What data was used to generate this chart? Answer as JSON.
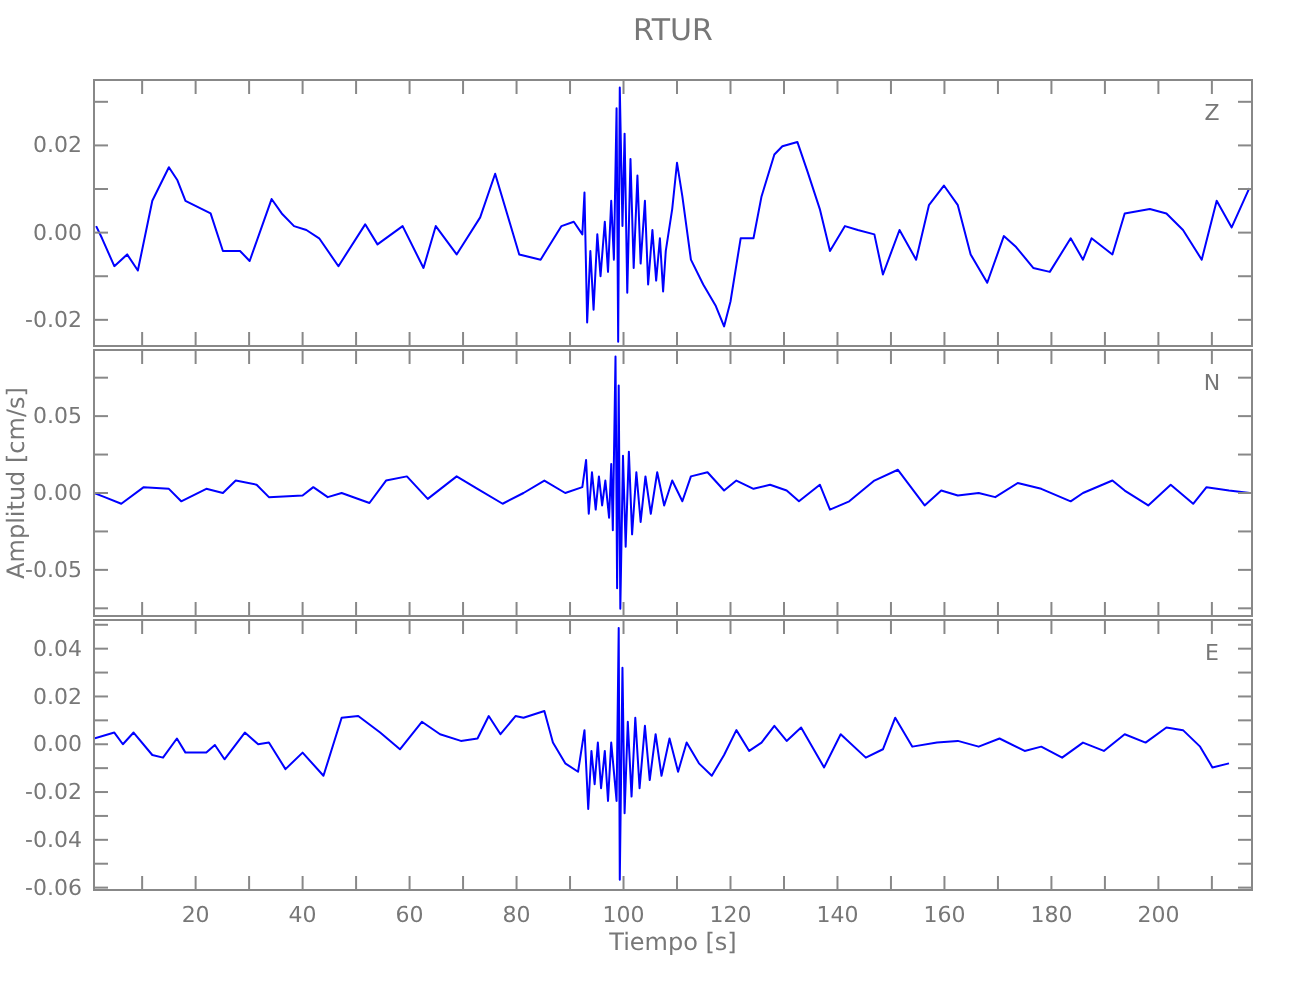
{
  "chart_data": [
    {
      "type": "line",
      "title": "RTUR",
      "annotations": [
        "Z"
      ],
      "xlim": [
        1,
        217.5
      ],
      "ylim": [
        -0.026,
        0.035
      ],
      "tick_labels": "y",
      "xticks": [
        {
          "value": 10,
          "label": null
        },
        {
          "value": 20,
          "label": null
        },
        {
          "value": 30,
          "label": null
        },
        {
          "value": 40,
          "label": null
        },
        {
          "value": 50,
          "label": null
        },
        {
          "value": 60,
          "label": null
        },
        {
          "value": 70,
          "label": null
        },
        {
          "value": 80,
          "label": null
        },
        {
          "value": 90,
          "label": null
        },
        {
          "value": 100,
          "label": null
        },
        {
          "value": 110,
          "label": null
        },
        {
          "value": 120,
          "label": null
        },
        {
          "value": 130,
          "label": null
        },
        {
          "value": 140,
          "label": null
        },
        {
          "value": 150,
          "label": null
        },
        {
          "value": 160,
          "label": null
        },
        {
          "value": 170,
          "label": null
        },
        {
          "value": 180,
          "label": null
        },
        {
          "value": 190,
          "label": null
        },
        {
          "value": 200,
          "label": null
        },
        {
          "value": 210,
          "label": null
        }
      ],
      "yticks": [
        {
          "value": -0.02,
          "label": "-0.02"
        },
        {
          "value": -0.01,
          "label": null
        },
        {
          "value": 0,
          "label": "0.00"
        },
        {
          "value": 0.01,
          "label": null
        },
        {
          "value": 0.02,
          "label": "0.02"
        },
        {
          "value": 0.03,
          "label": null
        }
      ],
      "series": [
        {
          "color": "#0000ff",
          "x": [
            1.4,
            2.5,
            4.8,
            7.2,
            9.2,
            11.9,
            15,
            16.6,
            18.1,
            22.8,
            25.1,
            28.3,
            30.1,
            34.2,
            36.1,
            38.4,
            40.7,
            43.1,
            46.7,
            51.7,
            54,
            58.7,
            62.6,
            64.9,
            68.8,
            73.2,
            76,
            80.5,
            84.5,
            88.4,
            90.7,
            92.3,
            92.7,
            93.2,
            93.8,
            94.4,
            95.1,
            95.7,
            96.5,
            97.1,
            97.7,
            98.2,
            98.7,
            99,
            99.3,
            99.8,
            100.2,
            100.7,
            101.3,
            101.9,
            102.6,
            103.2,
            104,
            104.6,
            105.4,
            106.1,
            106.8,
            107.4,
            107.9,
            109.1,
            110,
            111,
            112.6,
            114.9,
            117.2,
            118.8,
            120,
            121.9,
            124.3,
            125.8,
            128.2,
            129.7,
            132.5,
            134.4,
            136.7,
            138.6,
            141.4,
            143.8,
            146.9,
            148.5,
            151.6,
            154.7,
            157.1,
            159.9,
            162.5,
            164.9,
            168,
            171.1,
            173.4,
            176.6,
            179.7,
            183.6,
            185.9,
            187.5,
            191.4,
            193.7,
            198.4,
            201.5,
            204.6,
            208.1,
            210.9,
            213.7,
            217
          ],
          "values": [
            0.0015,
            -0.0013,
            -0.0077,
            -0.005,
            -0.0087,
            0.0073,
            0.015,
            0.012,
            0.0073,
            0.0044,
            -0.0042,
            -0.0042,
            -0.0065,
            0.0077,
            0.0044,
            0.0015,
            0.0006,
            -0.0013,
            -0.0077,
            0.0019,
            -0.0027,
            0.0015,
            -0.0081,
            0.0015,
            -0.005,
            0.0035,
            0.0135,
            -0.005,
            -0.0062,
            0.0015,
            0.0025,
            -0.0004,
            0.0092,
            -0.0206,
            -0.0042,
            -0.0177,
            -0.0004,
            -0.01,
            0.0025,
            -0.009,
            0.0073,
            -0.0062,
            0.0285,
            -0.025,
            0.0333,
            0.0015,
            0.0227,
            -0.0138,
            0.0169,
            -0.0081,
            0.0131,
            -0.0071,
            0.0073,
            -0.0119,
            0.0006,
            -0.011,
            -0.0013,
            -0.0135,
            -0.0042,
            0.0054,
            0.016,
            0.0083,
            -0.0062,
            -0.0119,
            -0.0167,
            -0.0215,
            -0.0158,
            -0.0013,
            -0.0013,
            0.0083,
            0.0179,
            0.0198,
            0.0208,
            0.014,
            0.0054,
            -0.0042,
            0.0015,
            0.0006,
            -0.0004,
            -0.0096,
            0.0006,
            -0.0062,
            0.0063,
            0.0108,
            0.0063,
            -0.005,
            -0.0115,
            -0.0008,
            -0.0033,
            -0.0081,
            -0.009,
            -0.0013,
            -0.0062,
            -0.0013,
            -0.005,
            0.0044,
            0.0054,
            0.0044,
            0.0006,
            -0.0062,
            0.0073,
            0.0012,
            0.0102
          ]
        }
      ]
    },
    {
      "type": "line",
      "ylabel": "Amplitud  [cm/s]",
      "annotations": [
        "N"
      ],
      "xlim": [
        1,
        217.5
      ],
      "ylim": [
        -0.08,
        0.093
      ],
      "tick_labels": "y",
      "xticks": [
        {
          "value": 10,
          "label": null
        },
        {
          "value": 20,
          "label": null
        },
        {
          "value": 30,
          "label": null
        },
        {
          "value": 40,
          "label": null
        },
        {
          "value": 50,
          "label": null
        },
        {
          "value": 60,
          "label": null
        },
        {
          "value": 70,
          "label": null
        },
        {
          "value": 80,
          "label": null
        },
        {
          "value": 90,
          "label": null
        },
        {
          "value": 100,
          "label": null
        },
        {
          "value": 110,
          "label": null
        },
        {
          "value": 120,
          "label": null
        },
        {
          "value": 130,
          "label": null
        },
        {
          "value": 140,
          "label": null
        },
        {
          "value": 150,
          "label": null
        },
        {
          "value": 160,
          "label": null
        },
        {
          "value": 170,
          "label": null
        },
        {
          "value": 180,
          "label": null
        },
        {
          "value": 190,
          "label": null
        },
        {
          "value": 200,
          "label": null
        },
        {
          "value": 210,
          "label": null
        }
      ],
      "yticks": [
        {
          "value": -0.075,
          "label": null
        },
        {
          "value": -0.05,
          "label": "-0.05"
        },
        {
          "value": -0.025,
          "label": null
        },
        {
          "value": 0,
          "label": "0.00"
        },
        {
          "value": 0.025,
          "label": null
        },
        {
          "value": 0.05,
          "label": "0.05"
        },
        {
          "value": 0.075,
          "label": null
        }
      ],
      "series": [
        {
          "color": "#0000ff",
          "x": [
            1,
            3,
            6.1,
            10.3,
            15,
            17.3,
            22,
            25.1,
            27.5,
            31.4,
            33.7,
            40,
            42,
            44.7,
            47.3,
            52.5,
            55.6,
            59.5,
            63.4,
            68.8,
            72.7,
            77.4,
            81.3,
            85.2,
            89.1,
            92.3,
            93,
            93.5,
            94.1,
            94.8,
            95.4,
            96,
            96.6,
            97.3,
            97.7,
            98,
            98.5,
            98.8,
            99.1,
            99.4,
            99.9,
            100.4,
            101,
            101.6,
            102.4,
            103.2,
            104.1,
            105.1,
            106.3,
            107.6,
            109.1,
            111,
            112.6,
            115.7,
            118.8,
            121.1,
            124.3,
            127.4,
            130.5,
            132.8,
            136.7,
            138.6,
            142.2,
            146.9,
            151.3,
            156.3,
            159.4,
            162.5,
            166.4,
            169.5,
            173.7,
            178.1,
            183.6,
            185.9,
            191.4,
            193.7,
            198.1,
            202.3,
            206.5,
            209,
            213.2,
            217.1
          ],
          "values": [
            0,
            -0.0027,
            -0.007,
            0.0038,
            0.0027,
            -0.0054,
            0.0027,
            0,
            0.0081,
            0.0054,
            -0.0027,
            -0.0016,
            0.0038,
            -0.0027,
            0,
            -0.0065,
            0.0081,
            0.0108,
            -0.0038,
            0.0108,
            0.0027,
            -0.007,
            0,
            0.0081,
            0,
            0.0038,
            0.0215,
            -0.0135,
            0.0135,
            -0.0108,
            0.0108,
            -0.0081,
            0.0081,
            -0.0161,
            0.0188,
            -0.0242,
            0.0888,
            -0.0619,
            0.0699,
            -0.0753,
            0.0242,
            -0.035,
            0.0269,
            -0.0269,
            0.0135,
            -0.0188,
            0.0108,
            -0.0135,
            0.0135,
            -0.0081,
            0.0081,
            -0.0054,
            0.0108,
            0.0135,
            0.0016,
            0.0081,
            0.0027,
            0.0054,
            0.0016,
            -0.0054,
            0.0054,
            -0.0108,
            -0.0054,
            0.0081,
            0.0151,
            -0.0081,
            0.0016,
            -0.0016,
            0,
            -0.0027,
            0.0065,
            0.0027,
            -0.0054,
            0,
            0.0081,
            0.0016,
            -0.0081,
            0.0054,
            -0.007,
            0.0038,
            0.0016,
            0
          ]
        }
      ]
    },
    {
      "type": "line",
      "xlabel": "Tiempo  [s]",
      "annotations": [
        "E"
      ],
      "xlim": [
        1,
        217.5
      ],
      "ylim": [
        -0.061,
        0.052
      ],
      "xticks": [
        {
          "value": 10,
          "label": null
        },
        20,
        {
          "value": 30,
          "label": null
        },
        40,
        {
          "value": 50,
          "label": null
        },
        60,
        {
          "value": 70,
          "label": null
        },
        80,
        {
          "value": 90,
          "label": null
        },
        100,
        {
          "value": 110,
          "label": null
        },
        120,
        {
          "value": 130,
          "label": null
        },
        140,
        {
          "value": 150,
          "label": null
        },
        160,
        {
          "value": 170,
          "label": null
        },
        180,
        {
          "value": 190,
          "label": null
        },
        200,
        {
          "value": 210,
          "label": null
        }
      ],
      "yticks": [
        {
          "value": -0.06,
          "label": "-0.06"
        },
        {
          "value": -0.05,
          "label": null
        },
        {
          "value": -0.04,
          "label": "-0.04"
        },
        {
          "value": -0.03,
          "label": null
        },
        {
          "value": -0.02,
          "label": "-0.02"
        },
        {
          "value": -0.01,
          "label": null
        },
        {
          "value": 0,
          "label": "0.00"
        },
        {
          "value": 0.01,
          "label": null
        },
        {
          "value": 0.02,
          "label": "0.02"
        },
        {
          "value": 0.03,
          "label": null
        },
        {
          "value": 0.04,
          "label": "0.04"
        },
        {
          "value": 0.05,
          "label": null
        }
      ],
      "series": [
        {
          "color": "#0000ff",
          "x": [
            1,
            4.8,
            6.4,
            8.4,
            11.9,
            13.9,
            16.5,
            18.1,
            22,
            23.6,
            25.4,
            29.2,
            31.7,
            33.7,
            36.8,
            40,
            43.9,
            47.3,
            50.4,
            54.5,
            58.2,
            62.3,
            65.7,
            69.6,
            72.7,
            74.8,
            77,
            79.8,
            81.3,
            85.2,
            86.8,
            89.1,
            91.5,
            92.7,
            93.4,
            94,
            94.6,
            95.2,
            95.8,
            96.5,
            97.1,
            97.7,
            98.7,
            99.1,
            99.3,
            99.8,
            100.2,
            100.8,
            101.5,
            102.2,
            103,
            104,
            104.9,
            106,
            107.1,
            108.6,
            110.2,
            111.8,
            114.1,
            116.5,
            118.8,
            121.1,
            123.5,
            125.8,
            128.2,
            130.5,
            133.2,
            137.5,
            140.6,
            145.3,
            148.5,
            150.8,
            154,
            158.6,
            162.5,
            166.4,
            170.3,
            175,
            178.1,
            182,
            185.9,
            189.8,
            193.7,
            197.6,
            201.5,
            204.6,
            207.8,
            210.1,
            213.2
          ],
          "values": [
            0.0024,
            0.0049,
            0,
            0.0049,
            -0.0045,
            -0.0056,
            0.0024,
            -0.0035,
            -0.0035,
            -0.0003,
            -0.0063,
            0.0049,
            0,
            0.0007,
            -0.0104,
            -0.0035,
            -0.0132,
            0.0111,
            0.0118,
            0.0049,
            -0.0021,
            0.0094,
            0.0042,
            0.0014,
            0.0024,
            0.0118,
            0.0042,
            0.0118,
            0.0111,
            0.0139,
            0.0007,
            -0.008,
            -0.0115,
            0.0059,
            -0.0271,
            -0.0028,
            -0.0167,
            0.0007,
            -0.0184,
            -0.0028,
            -0.0237,
            0.0007,
            -0.0237,
            0.0487,
            -0.0567,
            0.032,
            -0.0289,
            0.0094,
            -0.0219,
            0.0111,
            -0.0184,
            0.0077,
            -0.015,
            0.0042,
            -0.0132,
            0.0024,
            -0.0115,
            0.0007,
            -0.008,
            -0.0132,
            -0.0045,
            0.0059,
            -0.0028,
            0.0007,
            0.0077,
            0.0014,
            0.007,
            -0.0097,
            0.0042,
            -0.0056,
            -0.0021,
            0.0111,
            -0.001,
            0.0007,
            0.0014,
            -0.001,
            0.0024,
            -0.0028,
            -0.001,
            -0.0056,
            0.0007,
            -0.0028,
            0.0042,
            0.0007,
            0.007,
            0.0059,
            -0.001,
            -0.0097,
            -0.008
          ]
        }
      ]
    }
  ]
}
